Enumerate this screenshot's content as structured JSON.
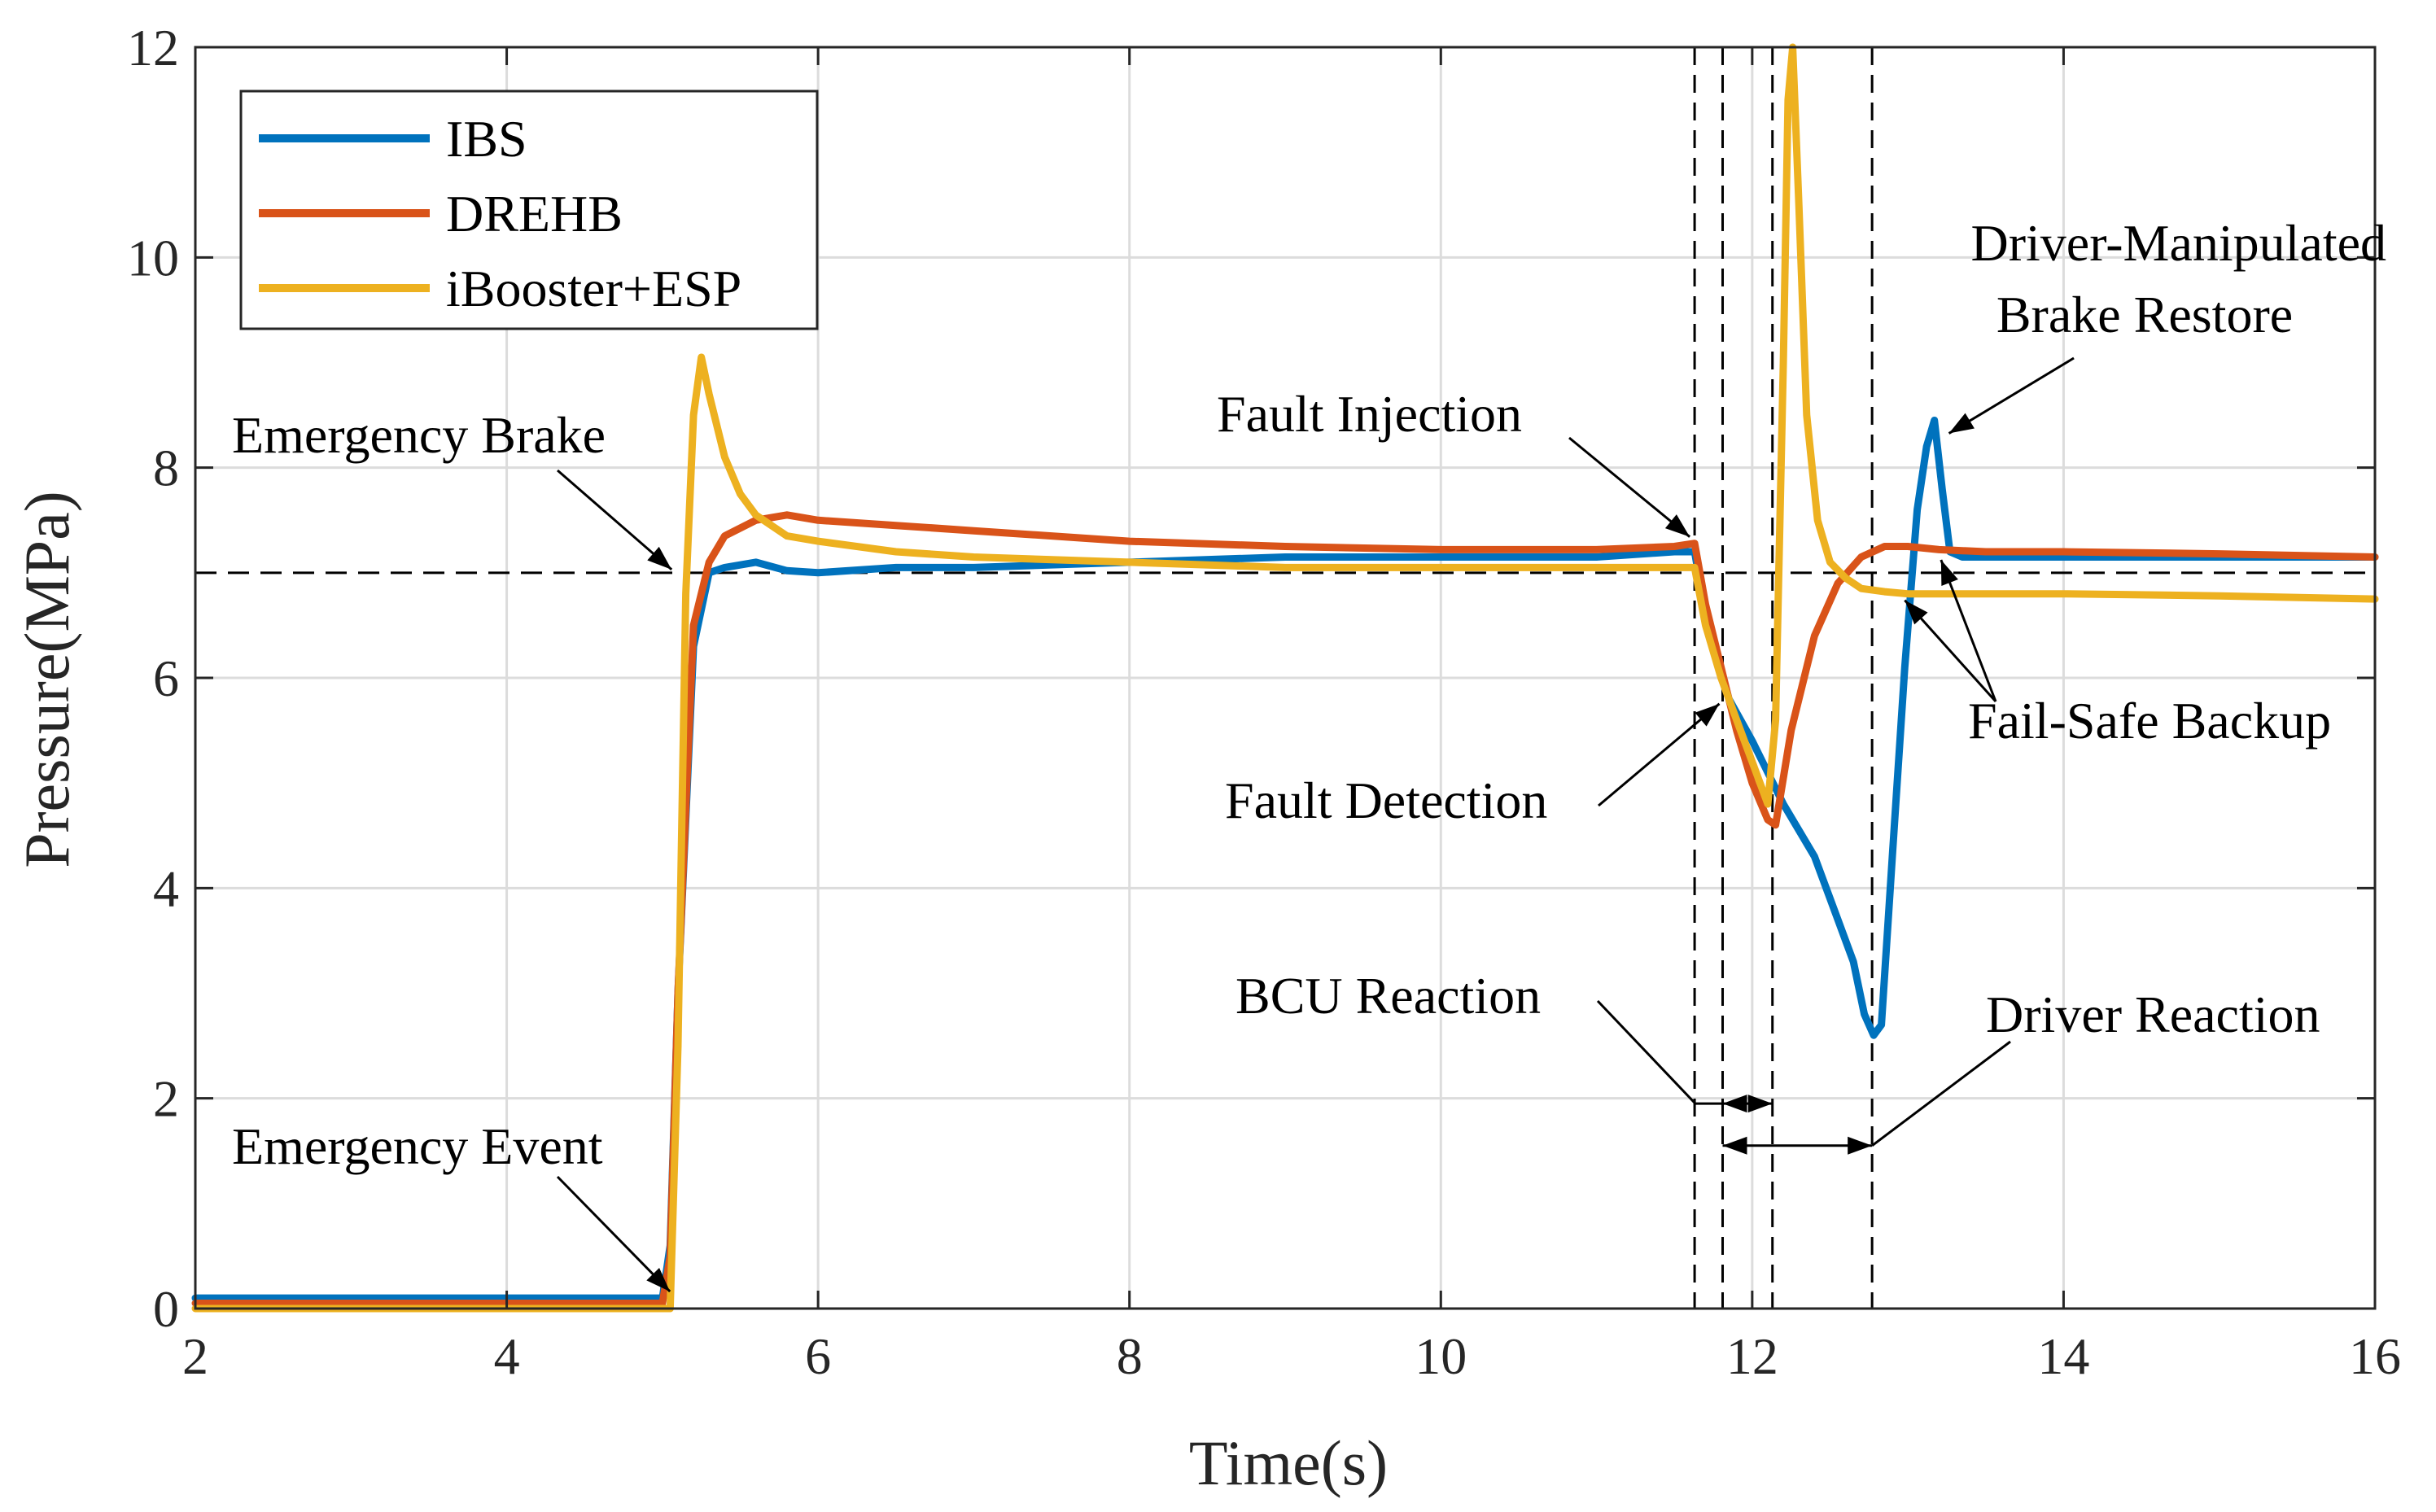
{
  "chart_data": {
    "type": "line",
    "title": "",
    "xlabel": "Time(s)",
    "ylabel": "Pressure(MPa)",
    "xlim": [
      2,
      16
    ],
    "ylim": [
      0,
      12
    ],
    "xticks": [
      2,
      4,
      6,
      8,
      10,
      12,
      14,
      16
    ],
    "yticks": [
      0,
      2,
      4,
      6,
      8,
      10,
      12
    ],
    "grid": true,
    "legend_position": "top-left",
    "reference_line": {
      "y": 7,
      "style": "dashed"
    },
    "event_lines": [
      11.63,
      11.81,
      12.13,
      12.77
    ],
    "series": [
      {
        "name": "IBS",
        "color": "#0072BD",
        "x": [
          2.0,
          5.0,
          5.05,
          5.1,
          5.2,
          5.3,
          5.4,
          5.6,
          5.8,
          6.0,
          6.5,
          7.0,
          8.0,
          9.0,
          10.0,
          11.0,
          11.5,
          11.63,
          11.7,
          11.85,
          12.0,
          12.2,
          12.4,
          12.55,
          12.65,
          12.72,
          12.78,
          12.83,
          12.9,
          12.98,
          13.06,
          13.12,
          13.17,
          13.22,
          13.27,
          13.35,
          13.5,
          14.0,
          15.0,
          16.0
        ],
        "y": [
          0.1,
          0.1,
          0.6,
          3.0,
          6.3,
          7.0,
          7.05,
          7.1,
          7.02,
          7.0,
          7.05,
          7.05,
          7.1,
          7.15,
          7.15,
          7.15,
          7.2,
          7.2,
          6.6,
          5.8,
          5.4,
          4.8,
          4.3,
          3.7,
          3.3,
          2.8,
          2.6,
          2.7,
          4.3,
          6.1,
          7.6,
          8.2,
          8.45,
          7.8,
          7.2,
          7.15,
          7.15,
          7.15,
          7.15,
          7.15
        ]
      },
      {
        "name": "DREHB",
        "color": "#D95319",
        "x": [
          2.0,
          5.0,
          5.05,
          5.1,
          5.2,
          5.3,
          5.4,
          5.6,
          5.8,
          6.0,
          6.5,
          7.0,
          8.0,
          9.0,
          10.0,
          11.0,
          11.5,
          11.63,
          11.7,
          11.8,
          11.9,
          12.0,
          12.1,
          12.15,
          12.25,
          12.4,
          12.55,
          12.7,
          12.85,
          13.0,
          13.2,
          13.5,
          14.0,
          15.0,
          16.0
        ],
        "y": [
          0.05,
          0.05,
          0.5,
          3.0,
          6.5,
          7.1,
          7.35,
          7.5,
          7.55,
          7.5,
          7.45,
          7.4,
          7.3,
          7.25,
          7.22,
          7.22,
          7.25,
          7.28,
          6.7,
          6.1,
          5.5,
          5.0,
          4.65,
          4.6,
          5.5,
          6.4,
          6.9,
          7.15,
          7.25,
          7.25,
          7.22,
          7.2,
          7.2,
          7.18,
          7.15
        ]
      },
      {
        "name": "iBooster+ESP",
        "color": "#EDB120",
        "x": [
          2.0,
          5.05,
          5.1,
          5.15,
          5.2,
          5.25,
          5.3,
          5.4,
          5.5,
          5.6,
          5.8,
          6.0,
          6.5,
          7.0,
          8.0,
          9.0,
          10.0,
          11.0,
          11.63,
          11.7,
          11.8,
          11.9,
          12.0,
          12.1,
          12.15,
          12.2,
          12.23,
          12.26,
          12.3,
          12.35,
          12.42,
          12.5,
          12.6,
          12.7,
          12.85,
          13.0,
          14.0,
          15.0,
          16.0
        ],
        "y": [
          0.0,
          0.0,
          2.5,
          6.8,
          8.5,
          9.05,
          8.7,
          8.1,
          7.75,
          7.55,
          7.35,
          7.3,
          7.2,
          7.15,
          7.1,
          7.05,
          7.05,
          7.05,
          7.05,
          6.5,
          6.0,
          5.6,
          5.2,
          4.8,
          5.6,
          9.0,
          11.5,
          12.0,
          10.5,
          8.5,
          7.5,
          7.1,
          6.95,
          6.85,
          6.82,
          6.8,
          6.8,
          6.78,
          6.75
        ]
      }
    ],
    "annotations": [
      {
        "id": "emergency_brake",
        "text": "Emergency Brake",
        "x": 5.08,
        "y": 7.0
      },
      {
        "id": "emergency_event",
        "text": "Emergency Event",
        "x": 5.08,
        "y": 0.1
      },
      {
        "id": "fault_injection",
        "text": "Fault Injection",
        "x": 11.63,
        "y": 7.28
      },
      {
        "id": "fault_detection",
        "text": "Fault Detection",
        "x": 11.81,
        "y": 5.8
      },
      {
        "id": "bcu_reaction",
        "text": "BCU Reaction",
        "x": 11.81,
        "y": 1.95
      },
      {
        "id": "driver_reaction",
        "text": "Driver Reaction",
        "x": 12.77,
        "y": 1.55
      },
      {
        "id": "driver_restore_l1",
        "text": "Driver-Manipulated",
        "x": 13.18,
        "y": 8.45
      },
      {
        "id": "driver_restore_l2",
        "text": "Brake Restore",
        "x": 13.18,
        "y": 8.45
      },
      {
        "id": "fail_safe",
        "text": "Fail-Safe Backup",
        "x": 13.15,
        "y": 7.2
      }
    ]
  }
}
